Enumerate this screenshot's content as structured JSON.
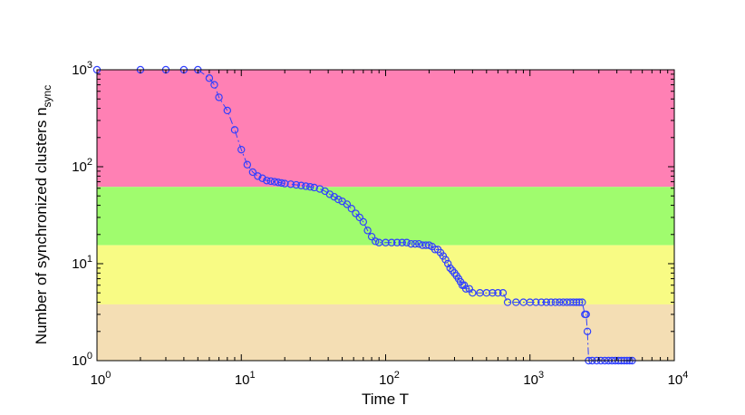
{
  "chart_data": {
    "type": "scatter",
    "xlabel": "Time T",
    "ylabel": {
      "main": "Number of synchronized clusters n",
      "subscript": "sync"
    },
    "xscale": "log",
    "yscale": "log",
    "xlim": [
      1,
      10000
    ],
    "ylim": [
      1,
      1000
    ],
    "x_ticks": [
      {
        "base": "10",
        "exp": "0",
        "value": 1
      },
      {
        "base": "10",
        "exp": "1",
        "value": 10
      },
      {
        "base": "10",
        "exp": "2",
        "value": 100
      },
      {
        "base": "10",
        "exp": "3",
        "value": 1000
      },
      {
        "base": "10",
        "exp": "4",
        "value": 10000
      }
    ],
    "y_ticks": [
      {
        "base": "10",
        "exp": "0",
        "value": 1
      },
      {
        "base": "10",
        "exp": "1",
        "value": 10
      },
      {
        "base": "10",
        "exp": "2",
        "value": 100
      },
      {
        "base": "10",
        "exp": "3",
        "value": 1000
      }
    ],
    "bands": [
      {
        "y_from": 62,
        "y_to": 1000,
        "color": "#ff80b4"
      },
      {
        "y_from": 15.5,
        "y_to": 62,
        "color": "#a0fc6e"
      },
      {
        "y_from": 3.8,
        "y_to": 15.5,
        "color": "#f8fb84"
      },
      {
        "y_from": 1,
        "y_to": 3.8,
        "color": "#f4deb4"
      }
    ],
    "marker": {
      "shape": "circle",
      "color": "#3040ff",
      "line": "dash-dot"
    },
    "series": [
      {
        "points": [
          [
            1,
            1000
          ],
          [
            2,
            1000
          ],
          [
            3,
            1000
          ],
          [
            4,
            1000
          ],
          [
            5,
            1000
          ],
          [
            6,
            820
          ],
          [
            6.5,
            700
          ],
          [
            7,
            520
          ],
          [
            8,
            380
          ],
          [
            9,
            240
          ],
          [
            10,
            150
          ],
          [
            11,
            105
          ],
          [
            12,
            88
          ],
          [
            13,
            80
          ],
          [
            14,
            76
          ],
          [
            15,
            72
          ],
          [
            16,
            71
          ],
          [
            17,
            70
          ],
          [
            18,
            69
          ],
          [
            19,
            68
          ],
          [
            20,
            67
          ],
          [
            22,
            66
          ],
          [
            24,
            65
          ],
          [
            26,
            64
          ],
          [
            28,
            63
          ],
          [
            30,
            62
          ],
          [
            32,
            61
          ],
          [
            35,
            59
          ],
          [
            38,
            56
          ],
          [
            41,
            52
          ],
          [
            44,
            49
          ],
          [
            47,
            46
          ],
          [
            50,
            44
          ],
          [
            54,
            41
          ],
          [
            58,
            37
          ],
          [
            62,
            33
          ],
          [
            66,
            30
          ],
          [
            70,
            27
          ],
          [
            75,
            22
          ],
          [
            80,
            19
          ],
          [
            85,
            17
          ],
          [
            90,
            16.5
          ],
          [
            100,
            16.5
          ],
          [
            110,
            16.5
          ],
          [
            120,
            16.5
          ],
          [
            130,
            16.5
          ],
          [
            140,
            16.5
          ],
          [
            150,
            16
          ],
          [
            160,
            16
          ],
          [
            170,
            16
          ],
          [
            180,
            15.5
          ],
          [
            190,
            15.5
          ],
          [
            200,
            15.5
          ],
          [
            210,
            15
          ],
          [
            220,
            14
          ],
          [
            230,
            14
          ],
          [
            240,
            13
          ],
          [
            250,
            12
          ],
          [
            260,
            11
          ],
          [
            270,
            10
          ],
          [
            280,
            9
          ],
          [
            290,
            8.5
          ],
          [
            300,
            8
          ],
          [
            310,
            7.5
          ],
          [
            320,
            7
          ],
          [
            330,
            6.5
          ],
          [
            340,
            6
          ],
          [
            350,
            6
          ],
          [
            360,
            5.5
          ],
          [
            380,
            5.5
          ],
          [
            400,
            5
          ],
          [
            450,
            5
          ],
          [
            500,
            5
          ],
          [
            550,
            5
          ],
          [
            600,
            5
          ],
          [
            650,
            5
          ],
          [
            700,
            4
          ],
          [
            800,
            4
          ],
          [
            900,
            4
          ],
          [
            1000,
            4
          ],
          [
            1100,
            4
          ],
          [
            1200,
            4
          ],
          [
            1300,
            4
          ],
          [
            1400,
            4
          ],
          [
            1500,
            4
          ],
          [
            1600,
            4
          ],
          [
            1700,
            4
          ],
          [
            1800,
            4
          ],
          [
            1900,
            4
          ],
          [
            2000,
            4
          ],
          [
            2100,
            4
          ],
          [
            2200,
            4
          ],
          [
            2300,
            4
          ],
          [
            2400,
            3
          ],
          [
            2450,
            3
          ],
          [
            2500,
            2
          ],
          [
            2550,
            1
          ],
          [
            2700,
            1
          ],
          [
            2900,
            1
          ],
          [
            3100,
            1
          ],
          [
            3300,
            1
          ],
          [
            3500,
            1
          ],
          [
            3700,
            1
          ],
          [
            3900,
            1
          ],
          [
            4100,
            1
          ],
          [
            4300,
            1
          ],
          [
            4500,
            1
          ],
          [
            4700,
            1
          ],
          [
            4900,
            1
          ],
          [
            5100,
            1
          ]
        ]
      }
    ]
  }
}
